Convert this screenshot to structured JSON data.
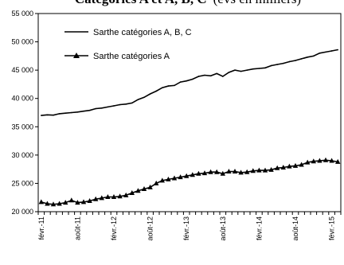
{
  "chart_data": {
    "type": "line",
    "title": "Catégories A et A, B, C",
    "subtitle": "(evs en milliers)",
    "xlabel": "",
    "ylabel": "",
    "ylim": [
      20000,
      55000
    ],
    "yticks": [
      20000,
      25000,
      30000,
      35000,
      40000,
      45000,
      50000,
      55000
    ],
    "ytick_labels": [
      "20 000",
      "25 000",
      "30 000",
      "35 000",
      "40 000",
      "45 000",
      "50 000",
      "55 000"
    ],
    "x_count": 50,
    "xtick_labels": [
      "févr.-11",
      "août-11",
      "févr.-12",
      "août-12",
      "févr.-13",
      "août-13",
      "févr.-14",
      "août-14",
      "févr.-15"
    ],
    "grid": false,
    "legend_position": "top-left",
    "series": [
      {
        "name": "Sarthe catégories A, B, C",
        "marker": "none",
        "color": "#000000",
        "values": [
          37000,
          37100,
          37050,
          37300,
          37400,
          37500,
          37600,
          37750,
          37900,
          38200,
          38300,
          38500,
          38700,
          38900,
          39000,
          39200,
          39800,
          40200,
          40800,
          41300,
          41900,
          42200,
          42300,
          42900,
          43100,
          43400,
          43900,
          44100,
          44000,
          44400,
          43900,
          44600,
          45000,
          44800,
          45000,
          45200,
          45300,
          45400,
          45800,
          46000,
          46200,
          46500,
          46700,
          47000,
          47300,
          47500,
          48000,
          48200,
          48400,
          48600
        ]
      },
      {
        "name": "Sarthe catégories A",
        "marker": "triangle",
        "color": "#000000",
        "values": [
          21700,
          21400,
          21300,
          21400,
          21600,
          22000,
          21600,
          21700,
          21900,
          22200,
          22400,
          22600,
          22600,
          22700,
          22900,
          23300,
          23700,
          24000,
          24300,
          25000,
          25500,
          25700,
          25900,
          26100,
          26300,
          26500,
          26700,
          26800,
          27000,
          27000,
          26700,
          27100,
          27100,
          26900,
          27000,
          27200,
          27300,
          27300,
          27400,
          27700,
          27800,
          28000,
          28100,
          28300,
          28700,
          28900,
          29000,
          29100,
          29000,
          28800
        ]
      }
    ]
  }
}
